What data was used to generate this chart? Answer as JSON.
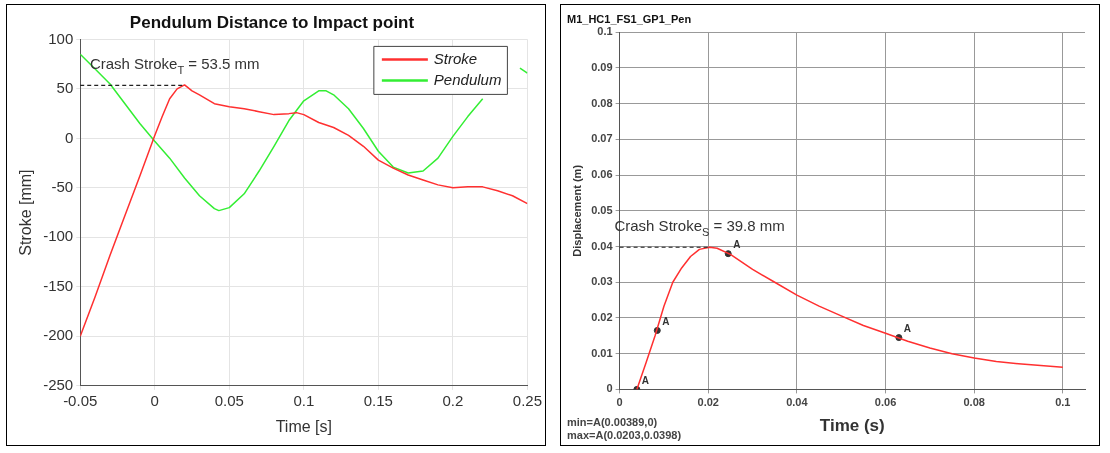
{
  "chart_data": [
    {
      "type": "line",
      "title": "Pendulum Distance to Impact point",
      "xlabel": "Time [s]",
      "ylabel": "Stroke [mm]",
      "xlim": [
        -0.05,
        0.25
      ],
      "xticks": [
        -0.05,
        0,
        0.05,
        0.1,
        0.15,
        0.2,
        0.25
      ],
      "ylim": [
        -250,
        100
      ],
      "yticks": [
        -250,
        -200,
        -150,
        -100,
        -50,
        0,
        50,
        100
      ],
      "grid": true,
      "legend": "top right",
      "annotations": [
        {
          "text": "Crash Stroke$_{T}$ = 53.5 mm",
          "x": 0.02,
          "y": 53.5
        }
      ],
      "series": [
        {
          "name": "Stroke",
          "color": "#ff3030",
          "x": [
            -0.05,
            -0.04,
            -0.03,
            -0.02,
            -0.01,
            0,
            0.005,
            0.01,
            0.015,
            0.02,
            0.025,
            0.03,
            0.04,
            0.05,
            0.06,
            0.07,
            0.08,
            0.09,
            0.095,
            0.1,
            0.11,
            0.12,
            0.13,
            0.14,
            0.15,
            0.16,
            0.17,
            0.18,
            0.19,
            0.2,
            0.21,
            0.22,
            0.23,
            0.24,
            0.25
          ],
          "values": [
            -200,
            -160,
            -118,
            -78,
            -38,
            3,
            22,
            40,
            50,
            54,
            48,
            44,
            35,
            32,
            30,
            27,
            24,
            25,
            26,
            24,
            16,
            11,
            3,
            -8,
            -22,
            -30,
            -37,
            -42,
            -47,
            -50,
            -49,
            -49,
            -53,
            -58,
            -66
          ]
        },
        {
          "name": "Pendulum",
          "color": "#33ee33",
          "x": [
            -0.05,
            -0.04,
            -0.03,
            -0.02,
            -0.01,
            0,
            0.01,
            0.02,
            0.03,
            0.04,
            0.043,
            0.05,
            0.06,
            0.07,
            0.08,
            0.09,
            0.1,
            0.11,
            0.115,
            0.12,
            0.13,
            0.14,
            0.15,
            0.16,
            0.17,
            0.18,
            0.19,
            0.2,
            0.21,
            0.22,
            0.23,
            0.24,
            0.245,
            0.25
          ],
          "values": [
            85,
            70,
            55,
            35,
            15,
            -3,
            -20,
            -40,
            -58,
            -71,
            -73,
            -70,
            -56,
            -33,
            -8,
            18,
            38,
            48,
            48,
            44,
            30,
            10,
            -13,
            -29,
            -35,
            -33,
            -20,
            2,
            22,
            40,
            null,
            null,
            71,
            66
          ]
        }
      ]
    },
    {
      "type": "line",
      "title": "M1_HC1_FS1_GP1_Pen",
      "xlabel": "Time (s)",
      "ylabel": "Displacement (m)",
      "xlim": [
        0,
        0.105
      ],
      "xticks": [
        0,
        0.02,
        0.04,
        0.06,
        0.08,
        0.1
      ],
      "ylim": [
        0,
        0.1
      ],
      "yticks": [
        0,
        0.01,
        0.02,
        0.03,
        0.04,
        0.05,
        0.06,
        0.07,
        0.08,
        0.09,
        0.1
      ],
      "grid": true,
      "annotations": [
        {
          "text": "Crash Stroke$_{S}$ = 39.8 mm",
          "x": 0.0203,
          "y": 0.0398
        },
        "min=A(0.00389,0)",
        "max=A(0.0203,0.0398)"
      ],
      "series": [
        {
          "color": "#ff3030",
          "x": [
            0.00389,
            0.006,
            0.008,
            0.01,
            0.012,
            0.014,
            0.016,
            0.018,
            0.0203,
            0.022,
            0.025,
            0.03,
            0.035,
            0.04,
            0.045,
            0.05,
            0.055,
            0.06,
            0.065,
            0.07,
            0.075,
            0.08,
            0.085,
            0.09,
            0.095,
            0.1
          ],
          "values": [
            0,
            0.0076,
            0.015,
            0.0233,
            0.03,
            0.034,
            0.0372,
            0.0392,
            0.0398,
            0.0395,
            0.0378,
            0.0336,
            0.03,
            0.0264,
            0.0233,
            0.0206,
            0.0179,
            0.0157,
            0.0135,
            0.0116,
            0.01,
            0.0088,
            0.0078,
            0.0072,
            0.0067,
            0.0062
          ]
        },
        {
          "type": "scatter",
          "name": "A",
          "color": "#333333",
          "x": [
            0.00389,
            0.0085,
            0.0245,
            0.063
          ],
          "values": [
            0,
            0.0165,
            0.038,
            0.0145
          ]
        }
      ]
    }
  ]
}
